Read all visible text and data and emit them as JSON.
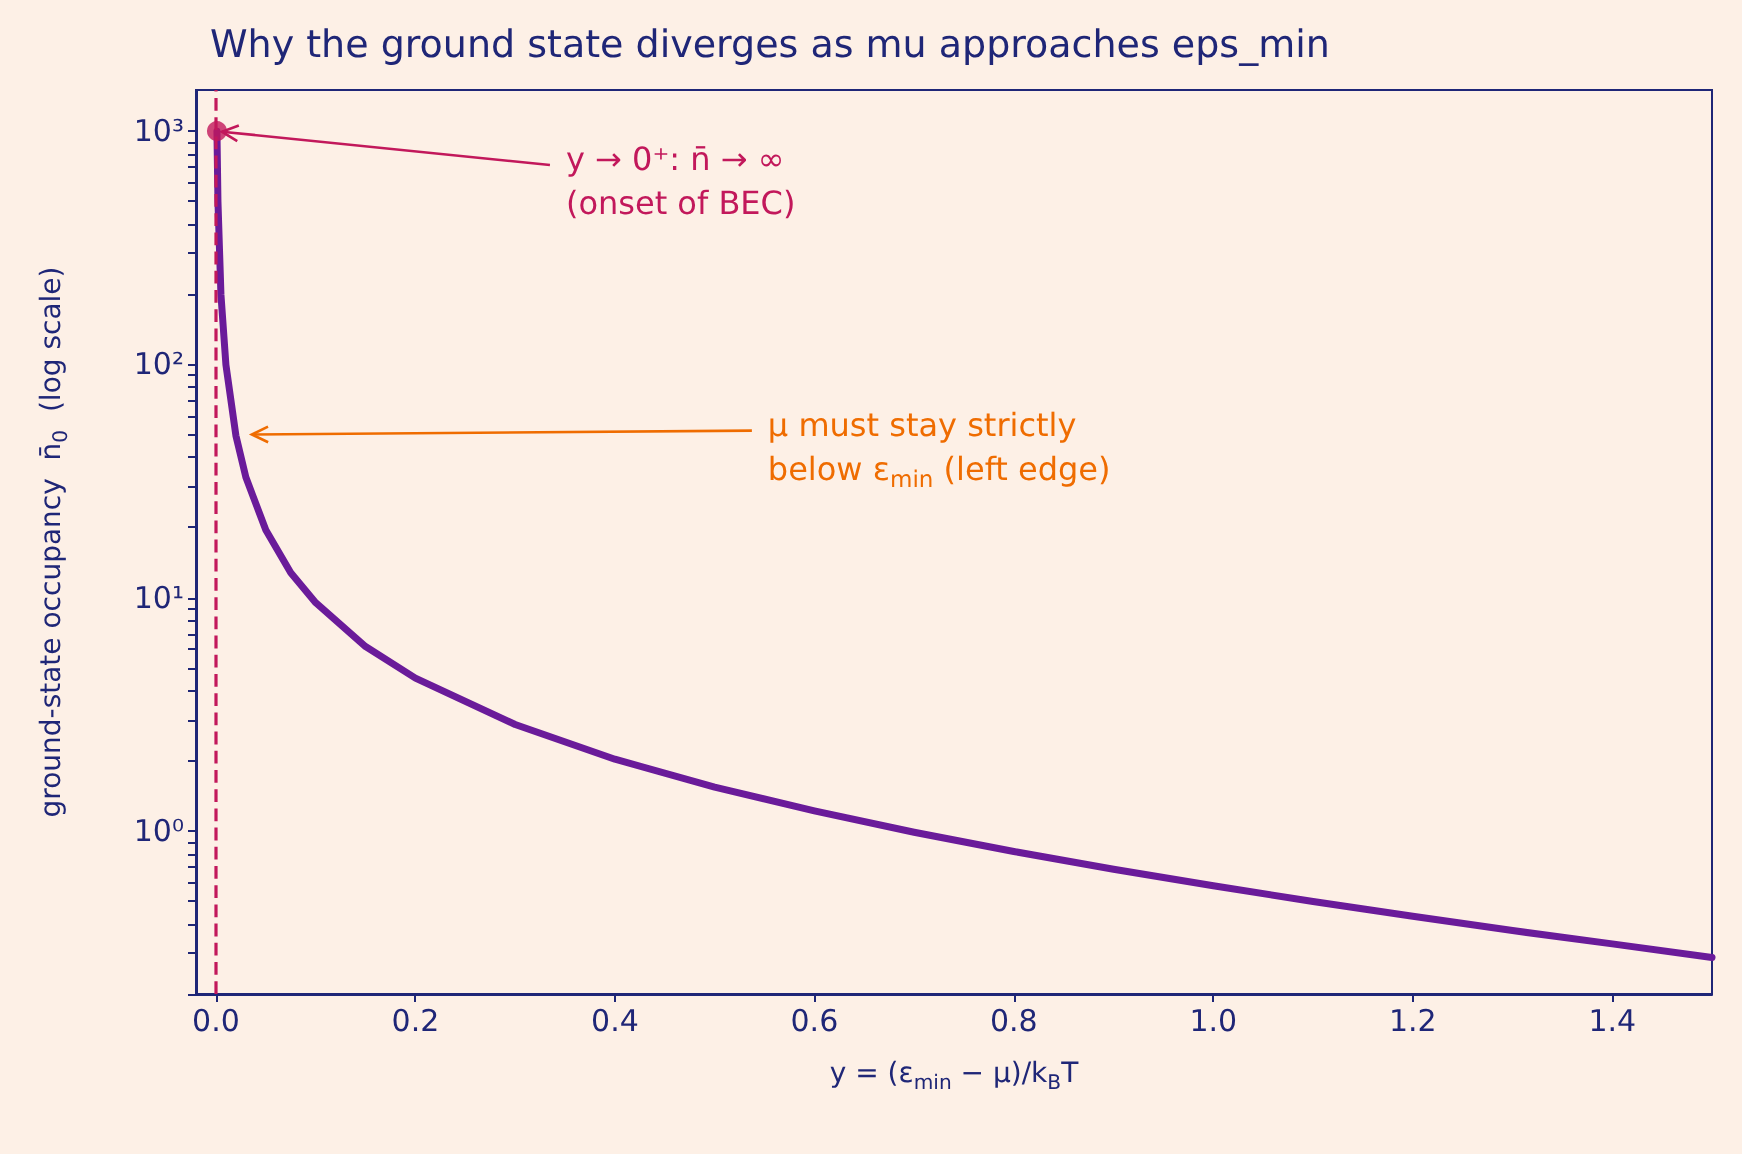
{
  "chart_data": {
    "type": "line",
    "title": "Why the ground state diverges as mu approaches eps_min",
    "xlabel": "y = (ε$_{min}$ − μ)/k$_{B}$T",
    "ylabel": "ground-state occupancy  n̄$_{0}$  (log scale)",
    "log": "y",
    "xlim": [
      -0.02,
      1.5
    ],
    "ylim": [
      0.2,
      1500
    ],
    "xticks": [
      {
        "value": 0,
        "label": "0.0"
      },
      0.2,
      0.4,
      0.6,
      0.8,
      {
        "value": 1,
        "label": "1.0"
      },
      1.2,
      1.4
    ],
    "yticks": [
      {
        "value": 0.2,
        "label": null
      },
      {
        "value": 0.3,
        "label": null
      },
      {
        "value": 0.4,
        "label": null
      },
      {
        "value": 0.5,
        "label": null
      },
      {
        "value": 0.6,
        "label": null
      },
      {
        "value": 0.7,
        "label": null
      },
      {
        "value": 0.8,
        "label": null
      },
      {
        "value": 0.9,
        "label": null
      },
      {
        "value": 1,
        "label": "10⁰"
      },
      {
        "value": 2,
        "label": null
      },
      {
        "value": 3,
        "label": null
      },
      {
        "value": 4,
        "label": null
      },
      {
        "value": 5,
        "label": null
      },
      {
        "value": 6,
        "label": null
      },
      {
        "value": 7,
        "label": null
      },
      {
        "value": 8,
        "label": null
      },
      {
        "value": 9,
        "label": null
      },
      {
        "value": 10,
        "label": "10¹"
      },
      {
        "value": 20,
        "label": null
      },
      {
        "value": 30,
        "label": null
      },
      {
        "value": 40,
        "label": null
      },
      {
        "value": 50,
        "label": null
      },
      {
        "value": 60,
        "label": null
      },
      {
        "value": 70,
        "label": null
      },
      {
        "value": 80,
        "label": null
      },
      {
        "value": 90,
        "label": null
      },
      {
        "value": 100,
        "label": "10²"
      },
      {
        "value": 200,
        "label": null
      },
      {
        "value": 300,
        "label": null
      },
      {
        "value": 400,
        "label": null
      },
      {
        "value": 500,
        "label": null
      },
      {
        "value": 600,
        "label": null
      },
      {
        "value": 700,
        "label": null
      },
      {
        "value": 800,
        "label": null
      },
      {
        "value": 900,
        "label": null
      },
      {
        "value": 1000,
        "label": "10³"
      }
    ],
    "series": [
      {
        "color": "#6a1b9a",
        "marker": "none",
        "line_style": "solid",
        "x": [
          0.001,
          0.002,
          0.005,
          0.01,
          0.02,
          0.03,
          0.05,
          0.075,
          0.1,
          0.15,
          0.2,
          0.3,
          0.4,
          0.5,
          0.6,
          0.7,
          0.8,
          0.9,
          1.0,
          1.1,
          1.2,
          1.3,
          1.4,
          1.5
        ],
        "values": [
          999.5,
          499.5,
          199.5,
          99.5,
          49.5,
          32.8,
          19.5,
          12.8,
          9.51,
          6.17,
          4.52,
          2.86,
          2.03,
          1.54,
          1.22,
          0.987,
          0.816,
          0.685,
          0.582,
          0.498,
          0.431,
          0.374,
          0.328,
          0.287
        ]
      },
      {
        "type": "scatter",
        "color": "#c2185b",
        "marker": "circle",
        "x": [
          0.001
        ],
        "values": [
          1000
        ]
      }
    ],
    "ref_lines": [
      {
        "axis": "x",
        "value": 0,
        "label": null,
        "color": "#c2185b",
        "line_style": "dashed"
      }
    ],
    "annotations": [
      {
        "text": "y → 0⁺: n̄ → ∞\n(onset of BEC)",
        "x": 0,
        "y": 1000
      },
      {
        "text": "μ must stay strictly\nbelow ε$_{min}$ (left edge)",
        "x": 0.03,
        "y": 50
      }
    ]
  }
}
